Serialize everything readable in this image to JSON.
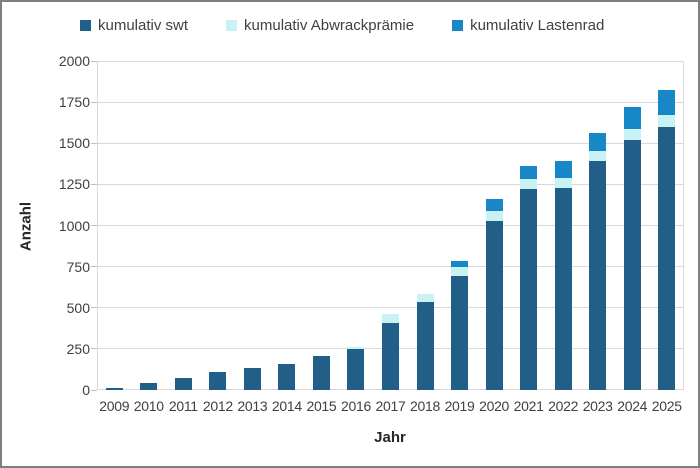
{
  "chart_data": {
    "type": "bar",
    "stacked": true,
    "title": "",
    "xlabel": "Jahr",
    "ylabel": "Anzahl",
    "ylim": [
      0,
      2000
    ],
    "yticks": [
      0,
      250,
      500,
      750,
      1000,
      1250,
      1500,
      1750,
      2000
    ],
    "grid": true,
    "legend_position": "top",
    "categories": [
      "2009",
      "2010",
      "2011",
      "2012",
      "2013",
      "2014",
      "2015",
      "2016",
      "2017",
      "2018",
      "2019",
      "2020",
      "2021",
      "2022",
      "2023",
      "2024",
      "2025"
    ],
    "series": [
      {
        "name": "kumulativ swt",
        "color": "#215e88",
        "values": [
          15,
          40,
          70,
          108,
          135,
          160,
          205,
          250,
          410,
          535,
          690,
          1025,
          1220,
          1225,
          1390,
          1520,
          1600
        ]
      },
      {
        "name": "kumulativ Abwrackprämie",
        "color": "#c9f2f5",
        "values": [
          0,
          0,
          0,
          0,
          0,
          0,
          0,
          10,
          50,
          50,
          60,
          65,
          60,
          65,
          65,
          65,
          70
        ]
      },
      {
        "name": "kumulativ Lastenrad",
        "color": "#1787c8",
        "values": [
          0,
          0,
          0,
          0,
          0,
          0,
          0,
          0,
          0,
          0,
          35,
          70,
          80,
          105,
          105,
          135,
          155
        ]
      }
    ]
  },
  "colors": {
    "gridline": "#d9d9d9",
    "tick": "#bfbfbf",
    "text": "#404040",
    "axis_title_text": "#262626",
    "frame_border": "#7f7f7f",
    "background": "#ffffff"
  }
}
